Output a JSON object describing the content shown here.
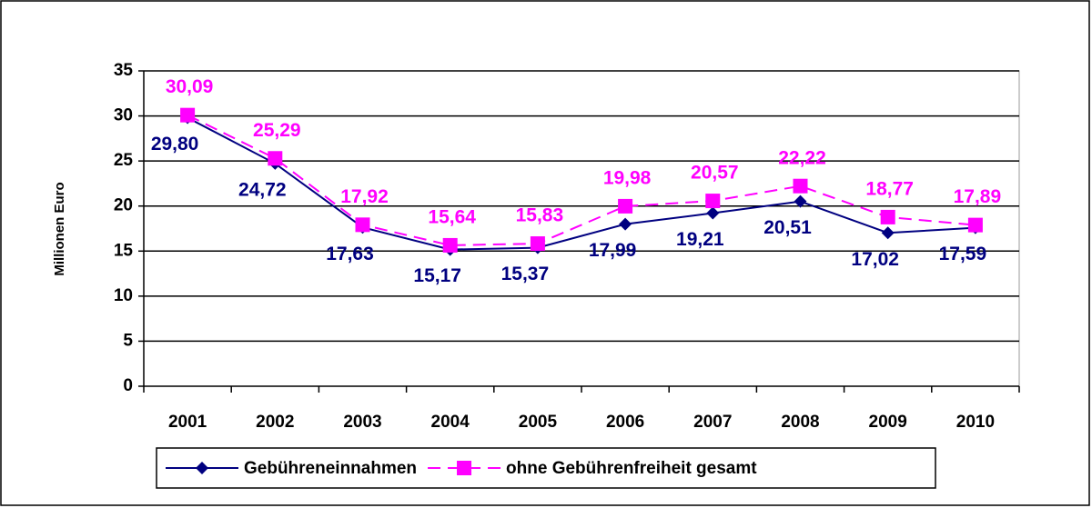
{
  "chart_data": {
    "type": "line",
    "y_label": "Millionen  Euro",
    "categories": [
      "2001",
      "2002",
      "2003",
      "2004",
      "2005",
      "2006",
      "2007",
      "2008",
      "2009",
      "2010"
    ],
    "series": [
      {
        "name": "Gebühreneinnahmen",
        "color": "#000080",
        "marker": "diamond",
        "dash": false,
        "values": [
          29.8,
          24.72,
          17.63,
          15.17,
          15.37,
          17.99,
          19.21,
          20.51,
          17.02,
          17.59
        ],
        "value_labels": [
          "29,80",
          "24,72",
          "17,63",
          "15,17",
          "15,37",
          "17,99",
          "19,21",
          "20,51",
          "17,02",
          "17,59"
        ]
      },
      {
        "name": "ohne Gebührenfreiheit gesamt",
        "color": "#ff00ff",
        "marker": "square",
        "dash": true,
        "values": [
          30.09,
          25.29,
          17.92,
          15.64,
          15.83,
          19.98,
          20.57,
          22.22,
          18.77,
          17.89
        ],
        "value_labels": [
          "30,09",
          "25,29",
          "17,92",
          "15,64",
          "15,83",
          "19,98",
          "20,57",
          "22,22",
          "18,77",
          "17,89"
        ]
      }
    ],
    "ylim": [
      0,
      35
    ],
    "yticks": [
      0,
      5,
      10,
      15,
      20,
      25,
      30,
      35
    ],
    "grid": true,
    "legend": "bottom"
  }
}
